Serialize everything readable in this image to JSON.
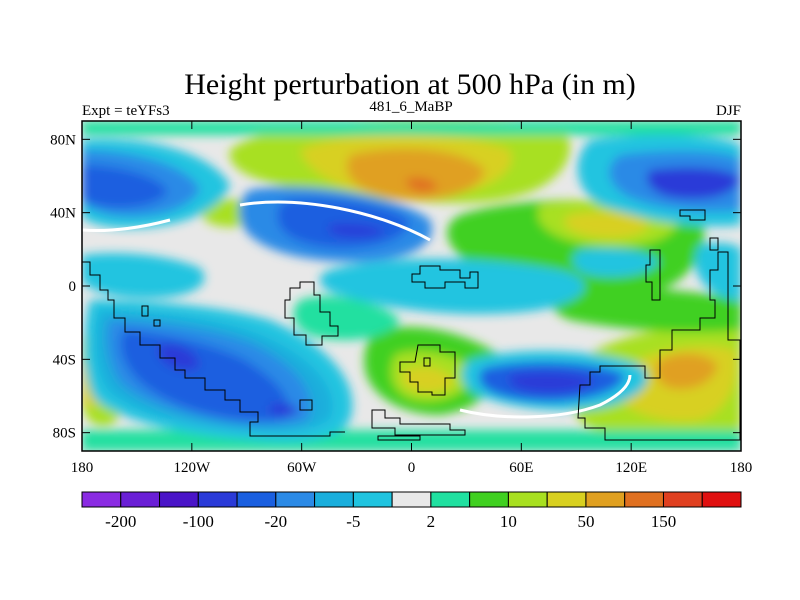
{
  "title": "Height perturbation at 500 hPa (in m)",
  "left_string": "Expt = teYFs3",
  "center_string": "481_6_MaBP",
  "right_string": "DJF",
  "map": {
    "lon_range": [
      -180,
      180
    ],
    "lat_range": [
      -90,
      90
    ],
    "x_ticks": [
      {
        "value": -180,
        "label": "180"
      },
      {
        "value": -120,
        "label": "120W"
      },
      {
        "value": -60,
        "label": "60W"
      },
      {
        "value": 0,
        "label": "0"
      },
      {
        "value": 60,
        "label": "60E"
      },
      {
        "value": 120,
        "label": "120E"
      },
      {
        "value": 180,
        "label": "180"
      }
    ],
    "y_ticks": [
      {
        "value": 80,
        "label": "80N"
      },
      {
        "value": 40,
        "label": "40N"
      },
      {
        "value": 0,
        "label": "0"
      },
      {
        "value": -40,
        "label": "40S"
      },
      {
        "value": -80,
        "label": "80S"
      }
    ]
  },
  "colorbar": {
    "colors": [
      "#8a2be2",
      "#6a1fd6",
      "#4a14c8",
      "#2a3ad8",
      "#1a5fe0",
      "#2b8ae6",
      "#1aaedc",
      "#20c4e0",
      "#e8e8e8",
      "#20e0a0",
      "#40d020",
      "#a8e020",
      "#d8d020",
      "#e0a020",
      "#e07020",
      "#e04020",
      "#e01010"
    ],
    "label_ticks": [
      {
        "index": 1,
        "label": "-200"
      },
      {
        "index": 3,
        "label": "-100"
      },
      {
        "index": 5,
        "label": "-20"
      },
      {
        "index": 7,
        "label": "-5"
      },
      {
        "index": 9,
        "label": "2"
      },
      {
        "index": 11,
        "label": "10"
      },
      {
        "index": 13,
        "label": "50"
      },
      {
        "index": 15,
        "label": "150"
      }
    ]
  }
}
